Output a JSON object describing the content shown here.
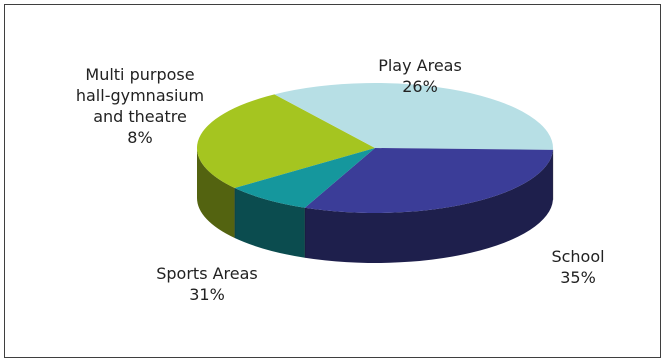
{
  "chart_data": {
    "type": "pie",
    "style": "3d",
    "title": "",
    "legend": "none",
    "slices": [
      {
        "name": "Play Areas",
        "value": 26,
        "value_label": "26%",
        "name_lines": [
          "Play Areas"
        ],
        "color": "#a5c520"
      },
      {
        "name": "School",
        "value": 35,
        "value_label": "35%",
        "name_lines": [
          "School"
        ],
        "color": "#b7dfe5"
      },
      {
        "name": "Sports Areas",
        "value": 31,
        "value_label": "31%",
        "name_lines": [
          "Sports Areas"
        ],
        "color": "#3b3d98"
      },
      {
        "name": "Multi purpose hall-gymnasium and theatre",
        "value": 8,
        "value_label": "8%",
        "name_lines": [
          "Multi purpose",
          "hall-gymnasium",
          "and theatre"
        ],
        "color": "#15979d"
      }
    ]
  }
}
